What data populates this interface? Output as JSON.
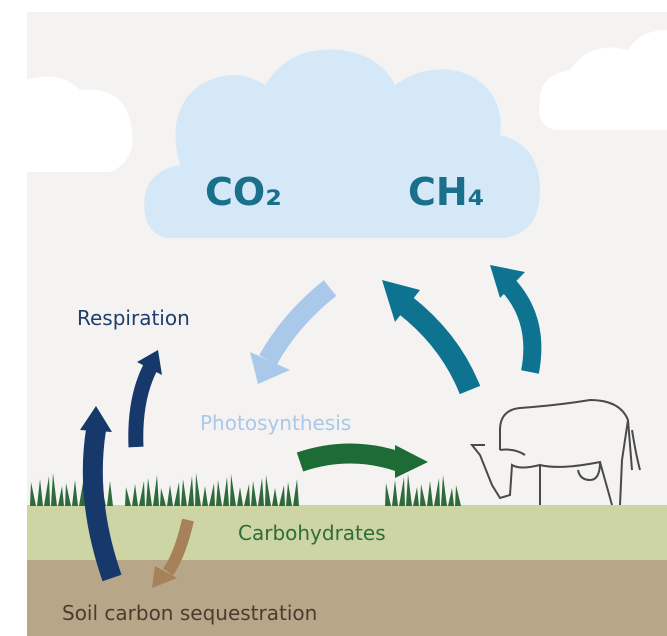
{
  "diagram": {
    "gases": [
      "CO₂",
      "CH₄"
    ],
    "labels": {
      "respiration": "Respiration",
      "photosynthesis": "Photosynthesis",
      "carbohydrates": "Carbohydrates",
      "soil": "Soil carbon sequestration"
    }
  }
}
